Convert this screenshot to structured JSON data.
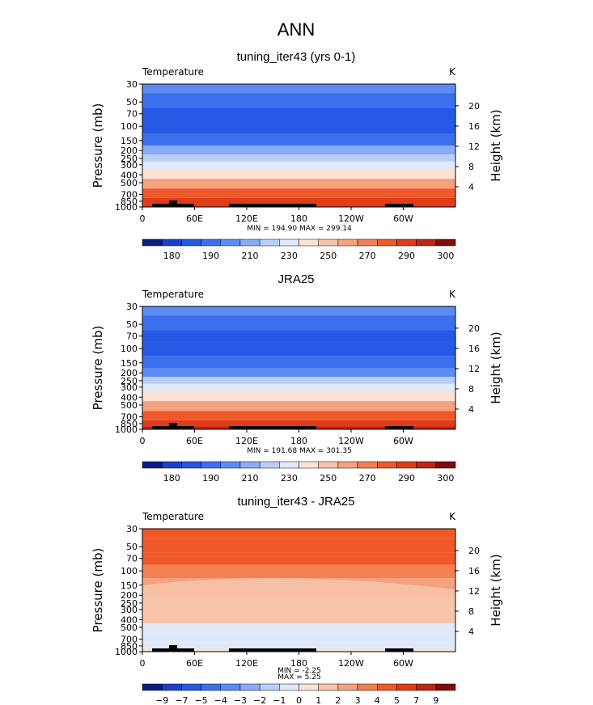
{
  "page_title": "ANN",
  "colors": {
    "temperature_levels": [
      "#0a1d83",
      "#1a3fc9",
      "#2459e4",
      "#3a70ee",
      "#5c8cf3",
      "#88acf7",
      "#b8cff9",
      "#dfe9fb",
      "#fbe3d3",
      "#f7c4a9",
      "#f5a27e",
      "#f37f54",
      "#ef5829",
      "#e03c19",
      "#bf2414",
      "#7f0d0a"
    ],
    "difference_levels": [
      "#0a1d83",
      "#1a3fc9",
      "#2459e4",
      "#3a70ee",
      "#5c8cf3",
      "#88acf7",
      "#b8cff9",
      "#dfe9fb",
      "#fbe3d3",
      "#f7c4a9",
      "#f5a27e",
      "#f37f54",
      "#ef5829",
      "#e03c19",
      "#bf2414",
      "#7f0d0a"
    ],
    "topography": "#000000"
  },
  "chart_data": [
    {
      "type": "heatmap",
      "title": "tuning_iter43 (yrs 0-1)",
      "variable_label": "Temperature",
      "units": "K",
      "ylabel": "Pressure (mb)",
      "y2label": "Height (km)",
      "x_tick_labels": [
        "0",
        "60E",
        "120E",
        "180",
        "120W",
        "60W"
      ],
      "x_ticks_lon": [
        0,
        60,
        120,
        180,
        240,
        300
      ],
      "xlim": [
        0,
        360
      ],
      "y_tick_labels": [
        "30",
        "50",
        "70",
        "100",
        "150",
        "200",
        "250",
        "300",
        "400",
        "500",
        "700",
        "850",
        "1000"
      ],
      "y2_tick_labels": [
        "4",
        "8",
        "12",
        "16",
        "20"
      ],
      "ylim_mb": [
        1000,
        30
      ],
      "stats": "MIN = 194.90   MAX = 299.14",
      "colorbar_labels": [
        "180",
        "190",
        "210",
        "230",
        "250",
        "270",
        "290",
        "300"
      ],
      "rows": [
        {
          "p": 30,
          "c": 4
        },
        {
          "p": 50,
          "c": 3
        },
        {
          "p": 70,
          "c": 2
        },
        {
          "p": 100,
          "c": 2
        },
        {
          "p": 150,
          "c": 3
        },
        {
          "p": 200,
          "c": 5
        },
        {
          "p": 250,
          "c": 6
        },
        {
          "p": 300,
          "c": 7
        },
        {
          "p": 400,
          "c": 8
        },
        {
          "p": 500,
          "c": 10
        },
        {
          "p": 700,
          "c": 12
        },
        {
          "p": 850,
          "c": 13
        },
        {
          "p": 1000,
          "c": 13
        }
      ]
    },
    {
      "type": "heatmap",
      "title": "JRA25",
      "variable_label": "Temperature",
      "units": "K",
      "ylabel": "Pressure (mb)",
      "y2label": "Height (km)",
      "x_tick_labels": [
        "0",
        "60E",
        "120E",
        "180",
        "120W",
        "60W"
      ],
      "x_ticks_lon": [
        0,
        60,
        120,
        180,
        240,
        300
      ],
      "xlim": [
        0,
        360
      ],
      "y_tick_labels": [
        "30",
        "50",
        "70",
        "100",
        "150",
        "200",
        "250",
        "300",
        "400",
        "500",
        "700",
        "850",
        "1000"
      ],
      "y2_tick_labels": [
        "4",
        "8",
        "12",
        "16",
        "20"
      ],
      "ylim_mb": [
        1000,
        30
      ],
      "stats": "MIN = 191.68   MAX = 301.35",
      "colorbar_labels": [
        "180",
        "190",
        "210",
        "230",
        "250",
        "270",
        "290",
        "300"
      ],
      "rows": [
        {
          "p": 30,
          "c": 4
        },
        {
          "p": 50,
          "c": 3
        },
        {
          "p": 70,
          "c": 2
        },
        {
          "p": 100,
          "c": 2
        },
        {
          "p": 150,
          "c": 3
        },
        {
          "p": 200,
          "c": 4
        },
        {
          "p": 250,
          "c": 6
        },
        {
          "p": 300,
          "c": 7
        },
        {
          "p": 400,
          "c": 8
        },
        {
          "p": 500,
          "c": 10
        },
        {
          "p": 700,
          "c": 12
        },
        {
          "p": 850,
          "c": 13
        },
        {
          "p": 1000,
          "c": 14
        }
      ]
    },
    {
      "type": "heatmap",
      "title": "tuning_iter43 - JRA25",
      "variable_label": "Temperature",
      "units": "K",
      "ylabel": "Pressure (mb)",
      "y2label": "Height (km)",
      "x_tick_labels": [
        "0",
        "60E",
        "120E",
        "180",
        "120W",
        "60W"
      ],
      "x_ticks_lon": [
        0,
        60,
        120,
        180,
        240,
        300
      ],
      "xlim": [
        0,
        360
      ],
      "y_tick_labels": [
        "30",
        "50",
        "70",
        "100",
        "150",
        "200",
        "250",
        "300",
        "400",
        "500",
        "700",
        "850",
        "1000"
      ],
      "y2_tick_labels": [
        "4",
        "8",
        "12",
        "16",
        "20"
      ],
      "ylim_mb": [
        1000,
        30
      ],
      "stats_min": "MIN =  -2.25",
      "stats_max": "MAX =   5.25",
      "colorbar_labels": [
        "−9",
        "−7",
        "−5",
        "−4",
        "−3",
        "−2",
        "−1",
        "0",
        "1",
        "2",
        "3",
        "4",
        "5",
        "7",
        "9"
      ],
      "rows": [
        {
          "p": 30,
          "c": 12
        },
        {
          "p": 50,
          "c": 12
        },
        {
          "p": 70,
          "c": 12
        },
        {
          "p": 100,
          "c": 11
        },
        {
          "p": 150,
          "c": 10
        },
        {
          "p": 200,
          "c": 10
        },
        {
          "p": 250,
          "c": 9
        },
        {
          "p": 300,
          "c": 9
        },
        {
          "p": 400,
          "c": 9
        },
        {
          "p": 500,
          "c": 7
        },
        {
          "p": 700,
          "c": 7
        },
        {
          "p": 850,
          "c": 7
        },
        {
          "p": 1000,
          "c": 8
        }
      ]
    }
  ]
}
